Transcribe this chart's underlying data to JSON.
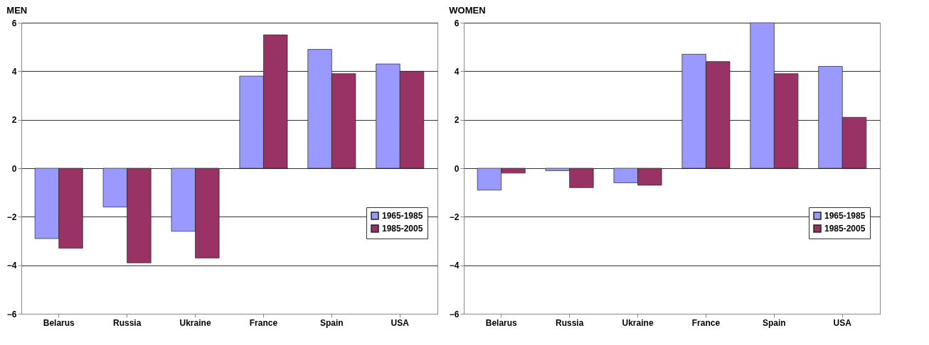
{
  "chart_data": [
    {
      "type": "bar",
      "title": "MEN",
      "categories": [
        "Belarus",
        "Russia",
        "Ukraine",
        "France",
        "Spain",
        "USA"
      ],
      "series": [
        {
          "name": "1965-1985",
          "color": "#9999ff",
          "values": [
            -2.9,
            -1.6,
            -2.6,
            3.8,
            4.9,
            4.3
          ]
        },
        {
          "name": "1985-2005",
          "color": "#993366",
          "values": [
            -3.3,
            -3.9,
            -3.7,
            5.5,
            3.9,
            4.0
          ]
        }
      ],
      "ylim": [
        -6,
        6
      ],
      "yticks": [
        -6,
        -4,
        -2,
        0,
        2,
        4,
        6
      ],
      "grid": "y",
      "legend": "right"
    },
    {
      "type": "bar",
      "title": "WOMEN",
      "categories": [
        "Belarus",
        "Russia",
        "Ukraine",
        "France",
        "Spain",
        "USA"
      ],
      "series": [
        {
          "name": "1965-1985",
          "color": "#9999ff",
          "values": [
            -0.9,
            -0.1,
            -0.6,
            4.7,
            6.0,
            4.2
          ]
        },
        {
          "name": "1985-2005",
          "color": "#993366",
          "values": [
            -0.2,
            -0.8,
            -0.7,
            4.4,
            3.9,
            2.1
          ]
        }
      ],
      "ylim": [
        -6,
        6
      ],
      "yticks": [
        -6,
        -4,
        -2,
        0,
        2,
        4,
        6
      ],
      "grid": "y",
      "legend": "right"
    }
  ]
}
